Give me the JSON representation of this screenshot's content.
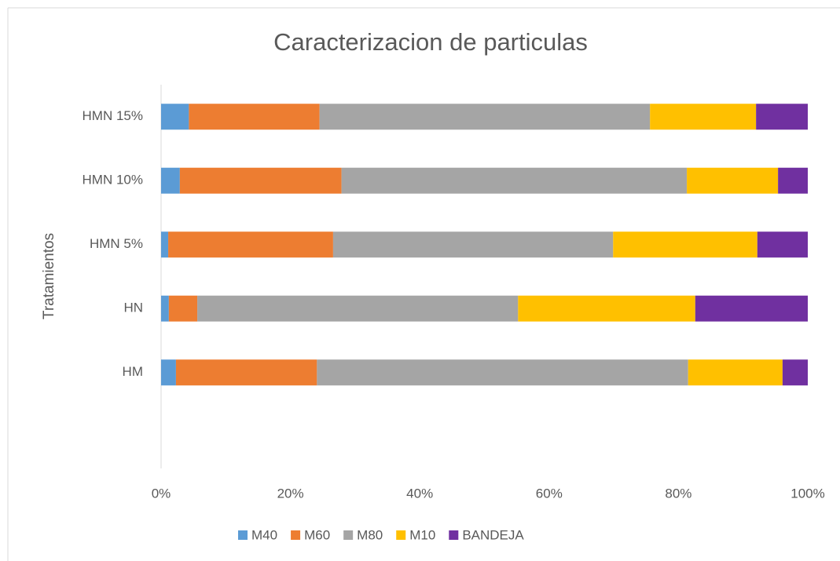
{
  "chart_data": {
    "type": "stacked-bar-horizontal",
    "title": "Caracterizacion de particulas",
    "y_label": "Tratamientos",
    "categories": [
      null,
      "HM",
      "HN",
      "HMN 5%",
      "HMN 10%",
      "HMN 15%"
    ],
    "series": [
      {
        "name": "M40",
        "color": "#5b9bd5",
        "values": [
          null,
          2.3,
          1.2,
          1.1,
          2.9,
          4.3
        ]
      },
      {
        "name": "M60",
        "color": "#ed7d31",
        "values": [
          null,
          21.8,
          4.4,
          25.5,
          25.0,
          20.2
        ]
      },
      {
        "name": "M80",
        "color": "#a5a5a5",
        "values": [
          null,
          57.4,
          49.6,
          43.3,
          53.4,
          51.1
        ]
      },
      {
        "name": "M10",
        "color": "#ffc000",
        "values": [
          null,
          14.6,
          27.4,
          22.3,
          14.1,
          16.4
        ]
      },
      {
        "name": "BANDEJA",
        "color": "#7030a0",
        "values": [
          null,
          3.9,
          17.4,
          7.8,
          4.6,
          8.0
        ]
      }
    ],
    "xlim": [
      0,
      100
    ],
    "xticks": [
      {
        "value": 0,
        "label": "0%"
      },
      {
        "value": 20,
        "label": "20%"
      },
      {
        "value": 40,
        "label": "40%"
      },
      {
        "value": 60,
        "label": "60%"
      },
      {
        "value": 80,
        "label": "80%"
      },
      {
        "value": 100,
        "label": "100%"
      }
    ],
    "legend": "bottom"
  }
}
